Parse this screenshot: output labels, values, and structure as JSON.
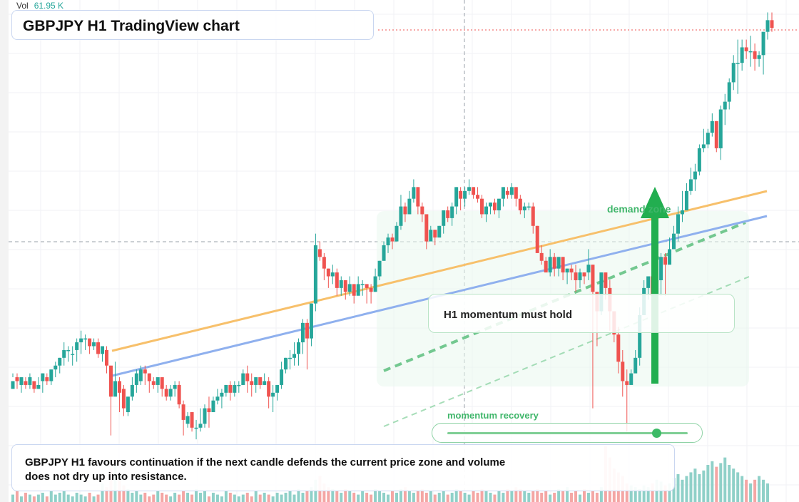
{
  "header": {
    "title": "GBPJPY H1 TradingView chart"
  },
  "volume_readout": {
    "label": "Vol",
    "value": "61.95 K"
  },
  "annotations": {
    "callout": "H1 momentum must hold",
    "demand_label": "demand zone",
    "momentum_label": "momentum recovery",
    "momentum_level": 0.87,
    "bottom_note": "GBPJPY H1 favours continuation if the next candle defends the current price zone and volume does not dry up into resistance."
  },
  "colors": {
    "bull": "#26a69a",
    "bear": "#ef5350",
    "volume_bull": "#8fd0c8",
    "volume_bear": "#f4a6a4",
    "trend_upper": "#f7c06b",
    "trend_lower": "#8fb0ee",
    "accent_green": "#22ae50"
  },
  "chart_data": {
    "type": "candlestick",
    "symbol": "GBPJPY",
    "timeframe": "H1",
    "candles": [
      [
        27,
        29,
        31,
        30
      ],
      [
        30,
        29,
        31,
        27
      ],
      [
        28,
        30,
        30,
        26
      ],
      [
        29,
        28,
        30,
        27
      ],
      [
        28,
        30,
        31,
        27
      ],
      [
        29,
        27,
        29,
        26
      ],
      [
        27,
        28,
        30,
        27
      ],
      [
        29,
        31,
        31,
        26
      ],
      [
        30,
        29,
        31,
        28
      ],
      [
        29,
        32,
        32,
        28
      ],
      [
        32,
        33,
        34,
        30
      ],
      [
        33,
        35,
        35,
        31
      ],
      [
        35,
        37,
        39,
        33
      ],
      [
        37,
        37,
        38,
        34
      ],
      [
        36,
        36,
        38,
        33
      ],
      [
        37,
        39,
        40,
        34
      ],
      [
        39,
        40,
        42,
        36
      ],
      [
        40,
        40,
        41,
        37
      ],
      [
        40,
        38,
        40,
        36
      ],
      [
        38,
        39,
        40,
        37
      ],
      [
        39,
        36,
        40,
        35
      ],
      [
        36,
        38,
        38,
        34
      ],
      [
        37,
        33,
        38,
        31
      ],
      [
        33,
        25,
        33,
        15
      ],
      [
        25,
        29,
        34,
        26
      ],
      [
        29,
        26,
        30,
        21
      ],
      [
        27,
        22,
        28,
        20
      ],
      [
        21,
        25,
        25,
        20
      ],
      [
        25,
        28,
        30,
        24
      ],
      [
        28,
        31,
        32,
        26
      ],
      [
        29,
        32,
        33,
        28
      ],
      [
        32,
        31,
        33,
        28
      ],
      [
        31,
        29,
        31,
        26
      ],
      [
        29,
        28,
        30,
        27
      ],
      [
        28,
        30,
        30,
        26
      ],
      [
        30,
        27,
        30,
        25
      ],
      [
        27,
        25,
        28,
        24
      ],
      [
        25,
        27,
        28,
        24
      ],
      [
        27,
        28,
        29,
        25
      ],
      [
        28,
        23,
        29,
        22
      ],
      [
        23,
        19,
        24,
        15
      ],
      [
        18,
        20,
        21,
        17
      ],
      [
        21,
        17,
        21,
        16
      ],
      [
        17,
        17,
        19,
        14
      ],
      [
        17,
        18,
        22,
        16
      ],
      [
        18,
        22,
        23,
        17
      ],
      [
        22,
        21,
        25,
        17
      ],
      [
        21,
        24,
        25,
        22
      ],
      [
        24,
        25,
        27,
        23
      ],
      [
        25,
        26,
        27,
        22
      ],
      [
        26,
        28,
        28,
        25
      ],
      [
        28,
        26,
        29,
        24
      ],
      [
        26,
        28,
        29,
        25
      ],
      [
        28,
        28,
        29,
        26
      ],
      [
        28,
        31,
        32,
        28
      ],
      [
        31,
        29,
        33,
        26
      ],
      [
        29,
        28,
        31,
        25
      ],
      [
        28,
        30,
        30,
        26
      ],
      [
        30,
        28,
        30,
        27
      ],
      [
        28,
        29,
        31,
        28
      ],
      [
        29,
        25,
        30,
        22
      ],
      [
        25,
        26,
        28,
        21
      ],
      [
        26,
        28,
        28,
        24
      ],
      [
        28,
        32,
        34,
        27
      ],
      [
        32,
        35,
        35,
        31
      ],
      [
        35,
        35,
        37,
        32
      ],
      [
        35,
        36,
        39,
        33
      ],
      [
        36,
        39,
        40,
        33
      ],
      [
        39,
        44,
        45,
        36
      ],
      [
        44,
        40,
        45,
        32
      ],
      [
        40,
        49,
        49,
        38
      ],
      [
        49,
        64,
        67,
        47
      ],
      [
        63,
        61,
        65,
        60
      ],
      [
        61,
        58,
        62,
        55
      ],
      [
        58,
        56,
        58,
        53
      ],
      [
        56,
        57,
        59,
        54
      ],
      [
        57,
        53,
        58,
        51
      ],
      [
        53,
        55,
        56,
        51
      ],
      [
        55,
        52,
        55,
        50
      ],
      [
        52,
        54,
        56,
        51
      ],
      [
        54,
        51,
        54,
        49
      ],
      [
        51,
        54,
        56,
        52
      ],
      [
        54,
        54,
        55,
        51
      ],
      [
        54,
        53,
        54,
        49
      ],
      [
        53,
        52,
        54,
        49
      ],
      [
        52,
        56,
        58,
        52
      ],
      [
        56,
        60,
        60,
        55
      ],
      [
        60,
        64,
        65,
        60
      ],
      [
        64,
        66,
        67,
        62
      ],
      [
        66,
        65,
        67,
        63
      ],
      [
        65,
        69,
        70,
        65
      ],
      [
        69,
        74,
        77,
        68
      ],
      [
        74,
        72,
        75,
        70
      ],
      [
        72,
        76,
        78,
        72
      ],
      [
        76,
        79,
        81,
        75
      ],
      [
        79,
        74,
        79,
        72
      ],
      [
        74,
        72,
        75,
        70
      ],
      [
        72,
        65,
        72,
        63
      ],
      [
        65,
        68,
        69,
        66
      ],
      [
        68,
        66,
        68,
        64
      ],
      [
        66,
        69,
        69,
        66
      ],
      [
        69,
        73,
        73,
        67
      ],
      [
        73,
        71,
        74,
        70
      ],
      [
        71,
        74,
        75,
        69
      ],
      [
        74,
        79,
        79,
        72
      ],
      [
        78,
        76,
        79,
        73
      ],
      [
        76,
        78,
        79,
        74
      ],
      [
        78,
        79,
        81,
        77
      ],
      [
        79,
        77,
        79,
        76
      ],
      [
        77,
        76,
        79,
        75
      ],
      [
        76,
        72,
        77,
        71
      ],
      [
        72,
        74,
        75,
        70
      ],
      [
        74,
        75,
        75,
        72
      ],
      [
        75,
        73,
        76,
        72
      ],
      [
        73,
        76,
        76,
        71
      ],
      [
        76,
        79,
        79,
        74
      ],
      [
        78,
        77,
        79,
        76
      ],
      [
        77,
        79,
        80,
        76
      ],
      [
        79,
        76,
        79,
        74
      ],
      [
        76,
        73,
        77,
        72
      ],
      [
        73,
        74,
        75,
        71
      ],
      [
        74,
        74,
        75,
        73
      ],
      [
        74,
        69,
        75,
        67
      ],
      [
        69,
        62,
        69,
        62
      ],
      [
        62,
        60,
        64,
        59
      ],
      [
        60,
        57,
        61,
        57
      ],
      [
        57,
        61,
        63,
        56
      ],
      [
        61,
        58,
        62,
        56
      ],
      [
        58,
        61,
        61,
        56
      ],
      [
        61,
        57,
        61,
        55
      ],
      [
        57,
        58,
        58,
        54
      ],
      [
        58,
        57,
        59,
        55
      ],
      [
        57,
        55,
        59,
        52
      ],
      [
        55,
        57,
        58,
        53
      ],
      [
        57,
        56,
        57,
        54
      ],
      [
        57,
        59,
        63,
        55
      ],
      [
        59,
        52,
        59,
        22
      ],
      [
        52,
        47,
        52,
        38
      ],
      [
        47,
        57,
        57,
        46
      ],
      [
        57,
        53,
        57,
        50
      ],
      [
        53,
        47,
        55,
        42
      ],
      [
        47,
        41,
        47,
        39
      ],
      [
        41,
        34,
        43,
        31
      ],
      [
        34,
        29,
        37,
        25
      ],
      [
        29,
        28,
        32,
        16
      ],
      [
        28,
        31,
        32,
        30
      ],
      [
        31,
        35,
        37,
        32
      ],
      [
        35,
        46,
        48,
        33
      ],
      [
        46,
        53,
        55,
        46
      ],
      [
        53,
        56,
        56,
        50
      ],
      [
        56,
        51,
        56,
        49
      ],
      [
        51,
        55,
        55,
        51
      ],
      [
        55,
        61,
        62,
        51
      ],
      [
        61,
        59,
        62,
        51
      ],
      [
        59,
        63,
        66,
        60
      ],
      [
        63,
        67,
        69,
        65
      ],
      [
        67,
        72,
        74,
        65
      ],
      [
        72,
        73,
        78,
        70
      ],
      [
        73,
        78,
        80,
        76
      ],
      [
        78,
        81,
        84,
        77
      ],
      [
        81,
        83,
        85,
        78
      ],
      [
        83,
        89,
        90,
        82
      ],
      [
        89,
        90,
        94,
        88
      ],
      [
        90,
        93,
        94,
        89
      ],
      [
        93,
        96,
        98,
        92
      ],
      [
        96,
        89,
        96,
        88
      ],
      [
        89,
        99,
        100,
        86
      ],
      [
        99,
        101,
        103,
        95
      ],
      [
        101,
        106,
        107,
        99
      ],
      [
        106,
        111,
        113,
        104
      ],
      [
        111,
        111,
        117,
        103
      ],
      [
        111,
        115,
        117,
        109
      ],
      [
        115,
        114,
        117,
        112
      ],
      [
        114,
        114,
        118,
        110
      ],
      [
        114,
        112,
        116,
        109
      ],
      [
        112,
        113,
        114,
        110
      ],
      [
        113,
        119,
        119,
        108
      ],
      [
        119,
        122,
        124,
        117
      ],
      [
        122,
        120,
        124,
        119
      ]
    ],
    "volume": [
      4,
      6,
      3,
      5,
      4,
      3,
      4,
      5,
      3,
      6,
      4,
      5,
      6,
      4,
      3,
      5,
      4,
      3,
      5,
      3,
      4,
      10,
      8,
      18,
      22,
      12,
      9,
      7,
      5,
      6,
      4,
      5,
      3,
      4,
      6,
      5,
      4,
      3,
      5,
      4,
      6,
      5,
      4,
      7,
      5,
      6,
      3,
      5,
      4,
      3,
      6,
      5,
      4,
      3,
      4,
      5,
      3,
      6,
      4,
      5,
      4,
      3,
      5,
      4,
      5,
      6,
      4,
      7,
      5,
      6,
      8,
      12,
      14,
      10,
      8,
      7,
      6,
      5,
      7,
      6,
      5,
      4,
      6,
      5,
      4,
      7,
      6,
      5,
      4,
      6,
      5,
      7,
      8,
      6,
      5,
      6,
      7,
      5,
      6,
      4,
      5,
      6,
      4,
      5,
      7,
      6,
      5,
      4,
      6,
      5,
      7,
      6,
      5,
      4,
      6,
      5,
      7,
      6,
      8,
      7,
      6,
      5,
      6,
      7,
      5,
      6,
      4,
      5,
      7,
      6,
      8,
      5,
      6,
      4,
      7,
      5,
      6,
      5,
      8,
      30,
      24,
      18,
      16,
      14,
      10,
      9,
      8,
      7,
      9,
      8,
      10,
      12,
      11,
      9,
      10,
      13,
      15,
      12,
      14,
      16,
      18,
      15,
      17,
      20,
      22,
      19,
      21,
      24,
      20,
      18,
      16,
      14,
      12,
      10,
      12,
      14,
      12,
      10
    ],
    "upper_trendline": [
      [
        157,
        492
      ],
      [
        1075,
        268
      ]
    ],
    "lower_trendline": [
      [
        157,
        527
      ],
      [
        1075,
        303
      ]
    ],
    "current_price_line": 339,
    "crosshair_x": 651
  }
}
